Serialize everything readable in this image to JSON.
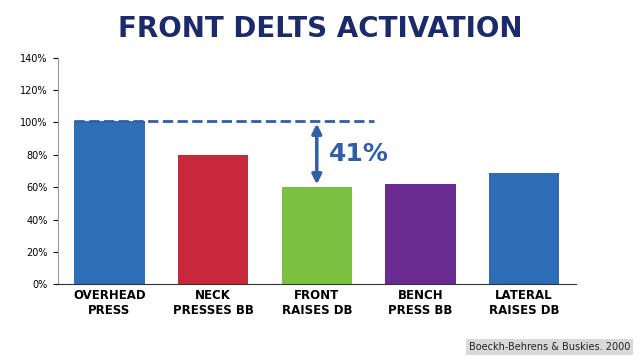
{
  "chart_data": {
    "type": "bar",
    "title": "FRONT DELTS ACTIVATION",
    "categories": [
      "OVERHEAD\nPRESS",
      "NECK\nPRESSES BB",
      "FRONT\nRAISES DB",
      "BENCH\nPRESS BB",
      "LATERAL\nRAISES DB"
    ],
    "values": [
      101,
      80,
      60,
      62,
      69
    ],
    "colors": [
      "#2f6fb7",
      "#c8283c",
      "#7cc142",
      "#6a2c91",
      "#2e6db5"
    ],
    "ylim": [
      0,
      140
    ],
    "yticks": [
      {
        "value": 0,
        "label": "0%"
      },
      {
        "value": 20,
        "label": "20%"
      },
      {
        "value": 40,
        "label": "40%"
      },
      {
        "value": 60,
        "label": "60%"
      },
      {
        "value": 80,
        "label": "80%"
      },
      {
        "value": 100,
        "label": "100%"
      },
      {
        "value": 120,
        "label": "120%"
      },
      {
        "value": 140,
        "label": "140%"
      }
    ],
    "grid": false,
    "annotation": "41%",
    "source": "Boeckh-Behrens & Buskies. 2000"
  }
}
